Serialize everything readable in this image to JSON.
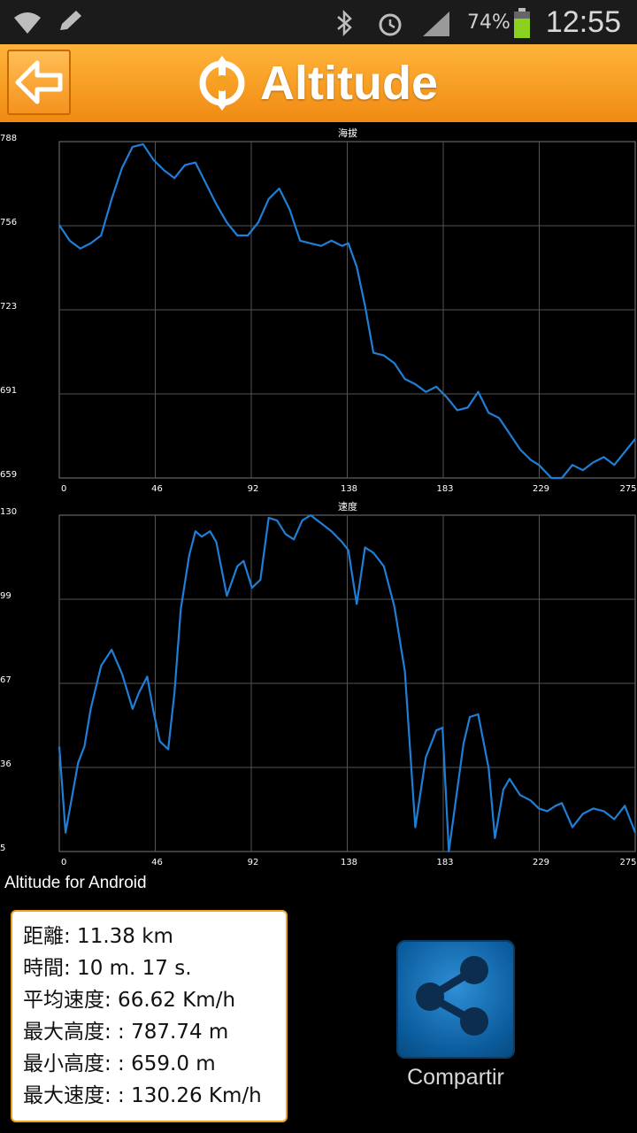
{
  "status_bar": {
    "battery_percent": "74%",
    "time": "12:55",
    "icons": [
      "wifi-icon",
      "pencil-icon",
      "bluetooth-icon",
      "alarm-icon",
      "signal-icon",
      "battery-icon"
    ]
  },
  "header": {
    "title": "Altitude",
    "back_icon": "back-arrow-icon",
    "logo_icon": "altitude-logo-icon",
    "color": "#f59a20"
  },
  "chart_data": [
    {
      "type": "line",
      "title": "海拔",
      "xlabel": "",
      "ylabel": "",
      "x_ticks": [
        "0",
        "46",
        "92",
        "138",
        "183",
        "229",
        "275"
      ],
      "y_ticks": [
        "788",
        "756",
        "723",
        "691",
        "659"
      ],
      "xlim": [
        0,
        275
      ],
      "ylim": [
        659,
        788
      ],
      "grid": true,
      "color": "#1f7fd6",
      "series": [
        {
          "x": [
            0,
            5,
            10,
            15,
            20,
            25,
            30,
            35,
            40,
            45,
            50,
            55,
            60,
            65,
            70,
            75,
            80,
            85,
            90,
            95,
            100,
            105,
            110,
            115,
            120,
            125,
            130,
            135,
            138,
            142,
            146,
            150,
            155,
            160,
            165,
            170,
            175,
            180,
            185,
            190,
            195,
            200,
            205,
            210,
            215,
            220,
            225,
            229,
            235,
            240,
            245,
            250,
            255,
            260,
            265,
            270,
            275
          ],
          "y": [
            756,
            750,
            747,
            749,
            752,
            766,
            778,
            786,
            787,
            781,
            777,
            774,
            779,
            780,
            772,
            764,
            757,
            752,
            752,
            757,
            766,
            770,
            762,
            750,
            749,
            748,
            750,
            748,
            749,
            740,
            725,
            707,
            706,
            703,
            697,
            695,
            692,
            694,
            690,
            685,
            686,
            692,
            684,
            682,
            676,
            670,
            666,
            664,
            659,
            657,
            664,
            662,
            665,
            667,
            664,
            669,
            674
          ]
        }
      ]
    },
    {
      "type": "line",
      "title": "速度",
      "xlabel": "",
      "ylabel": "",
      "x_ticks": [
        "0",
        "46",
        "92",
        "138",
        "183",
        "229",
        "275"
      ],
      "y_ticks": [
        "130",
        "99",
        "67",
        "36",
        "5"
      ],
      "xlim": [
        0,
        275
      ],
      "ylim": [
        5,
        130
      ],
      "grid": true,
      "color": "#1f7fd6",
      "series": [
        {
          "x": [
            0,
            3,
            6,
            9,
            12,
            15,
            20,
            25,
            30,
            35,
            38,
            42,
            45,
            48,
            52,
            55,
            58,
            62,
            65,
            68,
            72,
            75,
            80,
            85,
            88,
            92,
            96,
            100,
            104,
            108,
            112,
            116,
            120,
            125,
            130,
            135,
            138,
            142,
            146,
            150,
            155,
            160,
            165,
            170,
            175,
            180,
            183,
            186,
            190,
            193,
            196,
            200,
            205,
            208,
            212,
            215,
            220,
            225,
            229,
            233,
            237,
            240,
            245,
            250,
            255,
            260,
            265,
            270,
            275
          ],
          "y": [
            44,
            12,
            25,
            38,
            44,
            58,
            74,
            80,
            71,
            58,
            64,
            70,
            57,
            46,
            43,
            64,
            95,
            115,
            124,
            122,
            124,
            120,
            100,
            111,
            113,
            103,
            106,
            129,
            128,
            123,
            121,
            128,
            130,
            127,
            124,
            120,
            117,
            97,
            118,
            116,
            111,
            96,
            72,
            14,
            40,
            50,
            51,
            2,
            28,
            45,
            55,
            56,
            36,
            10,
            28,
            32,
            26,
            24,
            21,
            20,
            22,
            23,
            14,
            19,
            21,
            20,
            17,
            22,
            12
          ]
        }
      ]
    }
  ],
  "app_credit": "Altitude for Android",
  "stats": {
    "distance": "距離: 11.38 km",
    "time": "時間: 10 m. 17 s.",
    "avg_speed": "平均速度: 66.62 Km/h",
    "max_altitude": "最大高度: : 787.74 m",
    "min_altitude": "最小高度: : 659.0 m",
    "max_speed": "最大速度: : 130.26 Km/h"
  },
  "share": {
    "label": "Compartir",
    "icon": "share-icon"
  }
}
